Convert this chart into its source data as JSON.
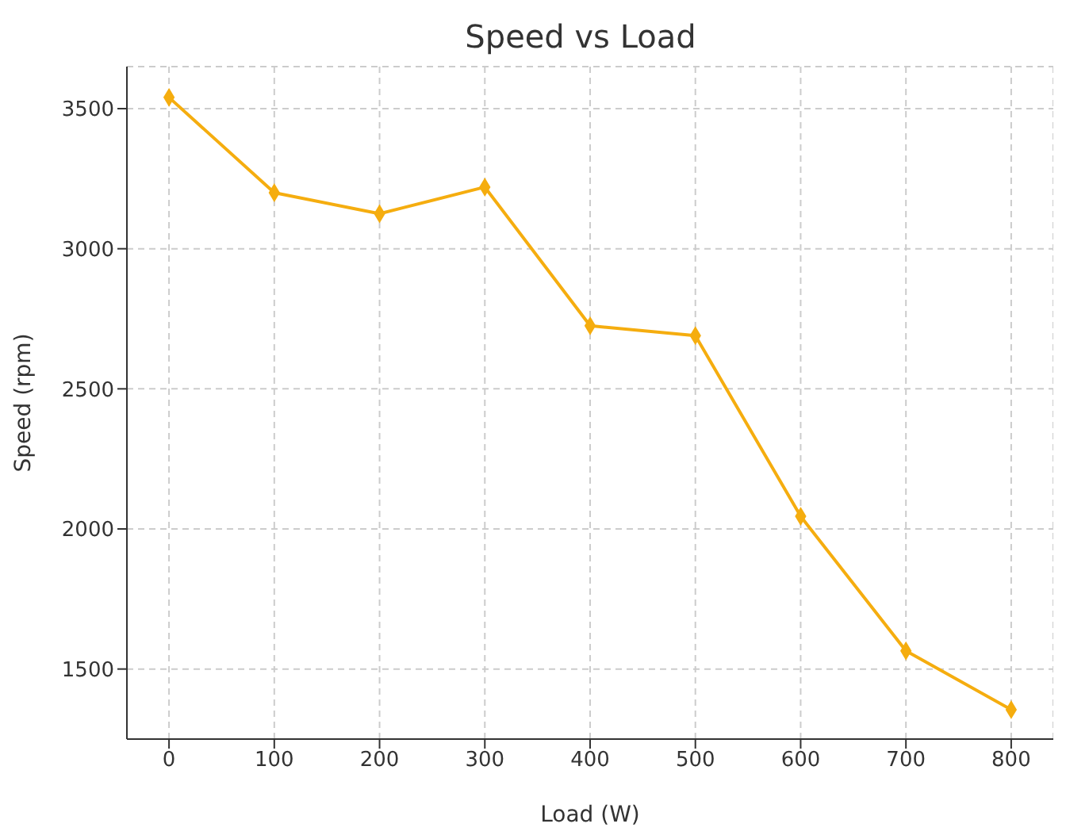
{
  "chart_data": {
    "type": "line",
    "title": "Speed vs Load",
    "xlabel": "Load (W)",
    "ylabel": "Speed (rpm)",
    "x": [
      0,
      100,
      200,
      300,
      400,
      500,
      600,
      700,
      800
    ],
    "series": [
      {
        "color": "#f5ad0f",
        "values": [
          3540,
          3200,
          3125,
          3220,
          2725,
          2690,
          2045,
          1565,
          1355
        ]
      }
    ],
    "xlim": [
      -40,
      840
    ],
    "xticks": [
      0,
      100,
      200,
      300,
      400,
      500,
      600,
      700,
      800
    ],
    "ylim": [
      1250,
      3650
    ],
    "yticks": [
      1500,
      2000,
      2500,
      3000,
      3500
    ],
    "grid": true,
    "marker": "diamond",
    "line_style": "solid"
  }
}
